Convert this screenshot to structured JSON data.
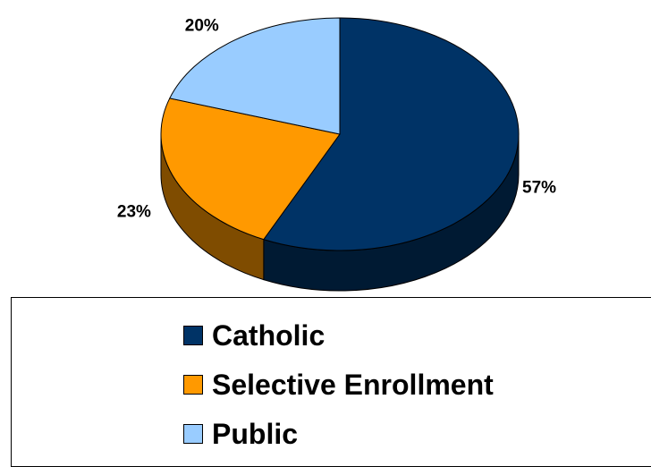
{
  "chart_data": {
    "type": "pie",
    "categories": [
      "Catholic",
      "Selective Enrollment",
      "Public"
    ],
    "values": [
      57,
      23,
      20
    ],
    "labels": [
      "57%",
      "23%",
      "20%"
    ],
    "colors": [
      "#003366",
      "#ff9900",
      "#99ccff"
    ],
    "side_colors": [
      "#001a33",
      "#7f4c00",
      "#5f86a8"
    ],
    "style": "3d-tilted",
    "legend_position": "bottom"
  }
}
